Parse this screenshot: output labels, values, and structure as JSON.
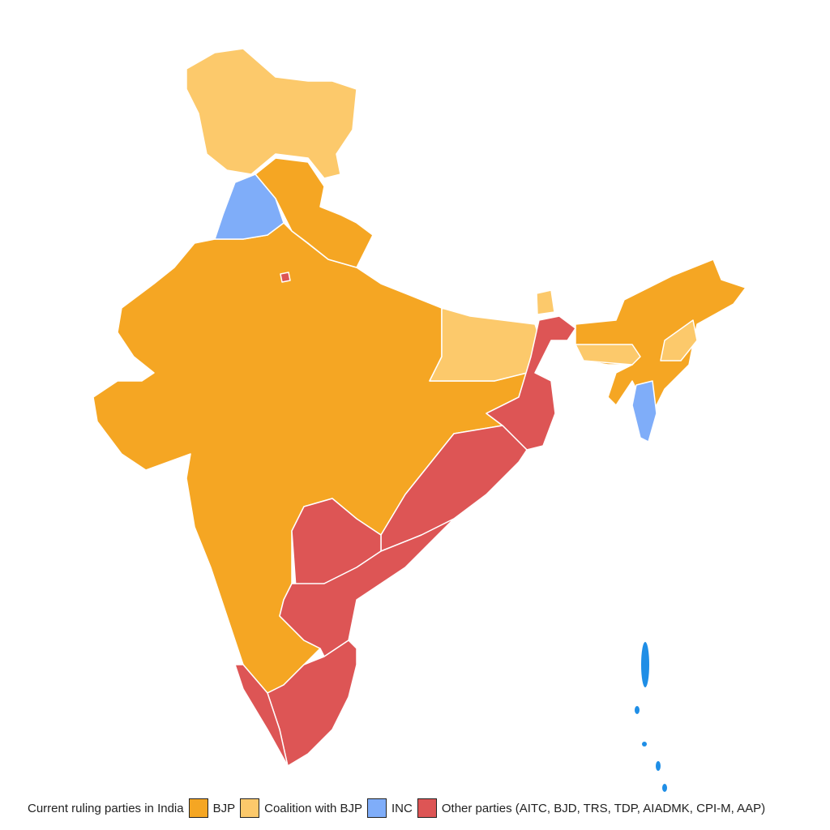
{
  "legend": {
    "title": "Current ruling parties in India",
    "items": [
      {
        "label": "BJP",
        "color": "#f5a623"
      },
      {
        "label": "Coalition with BJP",
        "color": "#fcc96b"
      },
      {
        "label": "INC",
        "color": "#7fadf9"
      },
      {
        "label": "Other parties (AITC, BJD, TRS, TDP, AIADMK, CPI-M, AAP)",
        "color": "#dd5555"
      }
    ]
  }
}
